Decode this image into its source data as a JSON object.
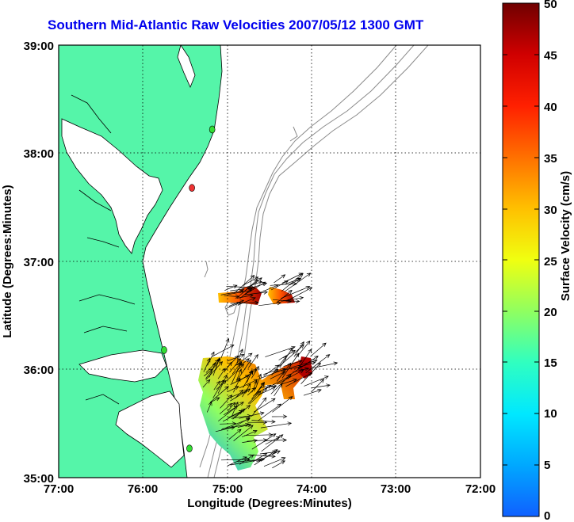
{
  "title": "Southern Mid-Atlantic Raw Velocities 2007/05/12 1300 GMT",
  "map": {
    "x_ticks": [
      "77:00",
      "76:00",
      "75:00",
      "74:00",
      "73:00",
      "72:00"
    ],
    "y_ticks": [
      "39:00",
      "38:00",
      "37:00",
      "36:00",
      "35:00"
    ],
    "xlabel": "Longitude (Degrees:Minutes)",
    "ylabel": "Latitude (Degrees:Minutes)",
    "lon_range": [
      -77,
      -72
    ],
    "lat_range": [
      35,
      39
    ],
    "grid": "dotted",
    "land_color": "#55f5a9",
    "contour_color": "#8a8a8a"
  },
  "colorbar": {
    "label": "Surface Velocity (cm/s)",
    "ticks": [
      "50",
      "45",
      "40",
      "35",
      "30",
      "25",
      "20",
      "15",
      "10",
      "5",
      "0"
    ],
    "range": [
      0,
      50
    ],
    "colors": [
      "#1060ff",
      "#00a8ff",
      "#00e8ff",
      "#30ffc0",
      "#90ff60",
      "#f0ff10",
      "#ffc000",
      "#ff7000",
      "#ff2000",
      "#d00000",
      "#700000"
    ]
  },
  "stations": [
    {
      "lon": -75.18,
      "lat": 38.22,
      "color": "#33dd33"
    },
    {
      "lon": -75.42,
      "lat": 37.68,
      "color": "#ee3333"
    },
    {
      "lon": -75.75,
      "lat": 36.18,
      "color": "#33dd33"
    },
    {
      "lon": -75.45,
      "lat": 35.27,
      "color": "#33dd33"
    }
  ]
}
